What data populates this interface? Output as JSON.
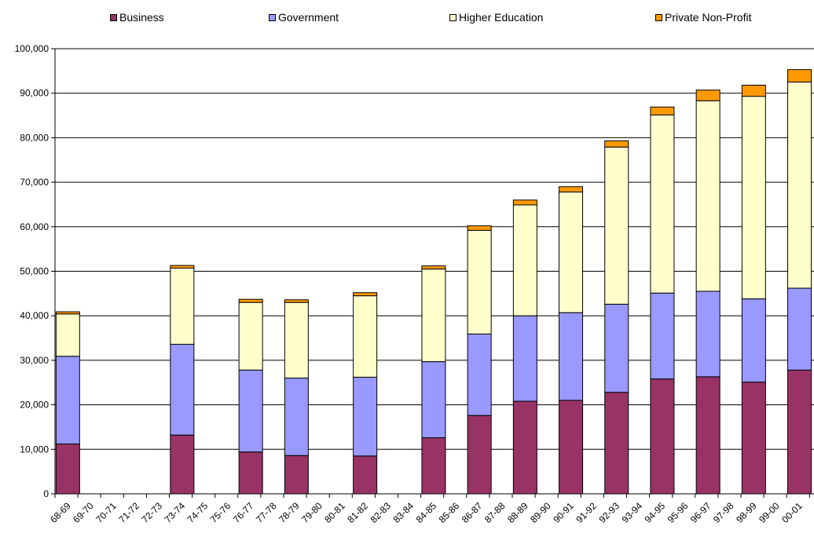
{
  "chart_data": {
    "type": "bar",
    "stacked": true,
    "title": "",
    "xlabel": "",
    "ylabel": "",
    "ylim": [
      0,
      100000
    ],
    "y_ticks": [
      "0",
      "10,000",
      "20,000",
      "30,000",
      "40,000",
      "50,000",
      "60,000",
      "70,000",
      "80,000",
      "90,000",
      "100,000"
    ],
    "grid": "horizontal",
    "legend_position": "top",
    "categories": [
      "68-69",
      "69-70",
      "70-71",
      "71-72",
      "72-73",
      "73-74",
      "74-75",
      "75-76",
      "76-77",
      "77-78",
      "78-79",
      "79-80",
      "80-81",
      "81-82",
      "82-83",
      "83-84",
      "84-85",
      "85-86",
      "86-87",
      "87-88",
      "88-89",
      "89-90",
      "90-91",
      "91-92",
      "92-93",
      "93-94",
      "94-95",
      "95-96",
      "96-97",
      "97-98",
      "98-99",
      "99-00",
      "00-01"
    ],
    "series": [
      {
        "name": "Business",
        "color": "#993366",
        "values": [
          11200,
          null,
          null,
          null,
          null,
          13200,
          null,
          null,
          9400,
          null,
          8600,
          null,
          null,
          8500,
          null,
          null,
          12600,
          null,
          17600,
          null,
          20800,
          null,
          21000,
          null,
          22800,
          null,
          25800,
          null,
          26300,
          null,
          25100,
          null,
          27800
        ]
      },
      {
        "name": "Government",
        "color": "#9999ff",
        "values": [
          19700,
          null,
          null,
          null,
          null,
          20400,
          null,
          null,
          18400,
          null,
          17400,
          null,
          null,
          17700,
          null,
          null,
          17100,
          null,
          18300,
          null,
          19200,
          null,
          19700,
          null,
          19800,
          null,
          19300,
          null,
          19200,
          null,
          18700,
          null,
          18400
        ]
      },
      {
        "name": "Higher Education",
        "color": "#ffffcc",
        "values": [
          9500,
          null,
          null,
          null,
          null,
          17100,
          null,
          null,
          15200,
          null,
          17000,
          null,
          null,
          18300,
          null,
          null,
          20800,
          null,
          23300,
          null,
          24900,
          null,
          27100,
          null,
          35300,
          null,
          40000,
          null,
          42800,
          null,
          45500,
          null,
          46300
        ]
      },
      {
        "name": "Private Non-Profit",
        "color": "#ff9900",
        "values": [
          500,
          null,
          null,
          null,
          null,
          600,
          null,
          null,
          700,
          null,
          600,
          null,
          null,
          700,
          null,
          null,
          700,
          null,
          1000,
          null,
          1100,
          null,
          1200,
          null,
          1400,
          null,
          1800,
          null,
          2400,
          null,
          2500,
          null,
          2800
        ]
      }
    ]
  }
}
